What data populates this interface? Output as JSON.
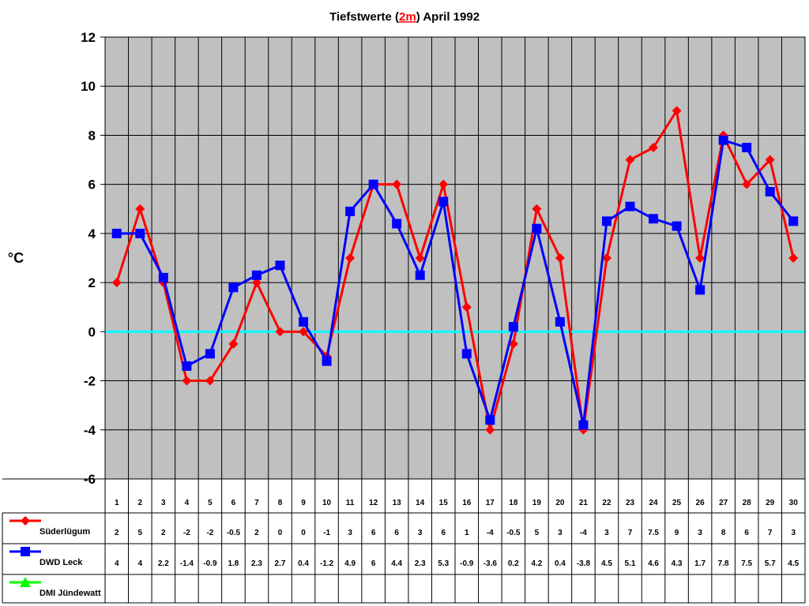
{
  "chart_data": {
    "type": "line",
    "title": {
      "prefix": "Tiefstwerte (",
      "highlight": "2m",
      "suffix": ") April 1992",
      "highlight_color": "#ff0000"
    },
    "ylabel": "°C",
    "ylim": [
      -6,
      12
    ],
    "yticks": [
      -6,
      -4,
      -2,
      0,
      2,
      4,
      6,
      8,
      10,
      12
    ],
    "grid": true,
    "plot_background": "#c0c0c0",
    "zero_line_color": "#00ffff",
    "categories": [
      "1",
      "2",
      "3",
      "4",
      "5",
      "6",
      "7",
      "8",
      "9",
      "10",
      "11",
      "12",
      "13",
      "14",
      "15",
      "16",
      "17",
      "18",
      "19",
      "20",
      "21",
      "22",
      "23",
      "24",
      "25",
      "26",
      "27",
      "28",
      "29",
      "30"
    ],
    "series": [
      {
        "name": "Süderlügum",
        "color": "#ff0000",
        "marker": "diamond",
        "values": [
          2,
          5,
          2,
          -2,
          -2,
          -0.5,
          2,
          0,
          0,
          -1,
          3,
          6,
          6,
          3,
          6,
          1,
          -4,
          -0.5,
          5,
          3,
          -4,
          3,
          7,
          7.5,
          9,
          3,
          8,
          6,
          7,
          3
        ]
      },
      {
        "name": "DWD Leck",
        "color": "#0000ff",
        "marker": "square",
        "values": [
          4,
          4,
          2.2,
          -1.4,
          -0.9,
          1.8,
          2.3,
          2.7,
          0.4,
          -1.2,
          4.9,
          6,
          4.4,
          2.3,
          5.3,
          -0.9,
          -3.6,
          0.2,
          4.2,
          0.4,
          -3.8,
          4.5,
          5.1,
          4.6,
          4.3,
          1.7,
          7.8,
          7.5,
          5.7,
          4.5
        ]
      },
      {
        "name": "DMI Jündewatt",
        "color": "#00ff00",
        "marker": "triangle",
        "values": [
          null,
          null,
          null,
          null,
          null,
          null,
          null,
          null,
          null,
          null,
          null,
          null,
          null,
          null,
          null,
          null,
          null,
          null,
          null,
          null,
          null,
          null,
          null,
          null,
          null,
          null,
          null,
          null,
          null,
          null
        ]
      }
    ]
  }
}
